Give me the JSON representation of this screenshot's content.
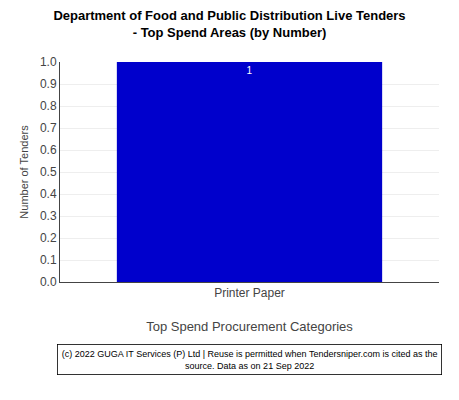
{
  "chart_data": {
    "type": "bar",
    "title": "Department of Food and Public Distribution Live Tenders\n- Top Spend Areas (by Number)",
    "categories": [
      "Printer Paper"
    ],
    "values": [
      1
    ],
    "color": "#0000cc",
    "xlabel": "Top Spend Procurement Categories",
    "ylabel": "Number of Tenders",
    "ylim": [
      0.0,
      1.0
    ],
    "yticks": [
      {
        "value": 0,
        "label": "0.0"
      },
      0.1,
      0.2,
      0.3,
      0.4,
      0.5,
      0.6,
      0.7,
      0.8,
      0.9,
      {
        "value": 1,
        "label": "1.0"
      }
    ],
    "grid": true,
    "data_labels": true,
    "annotations": [
      "(c) 2022 GUGA IT Services (P) Ltd | Reuse is permitted when Tendersniper.com is cited as the\nsource. Data as on 21 Sep 2022"
    ]
  }
}
